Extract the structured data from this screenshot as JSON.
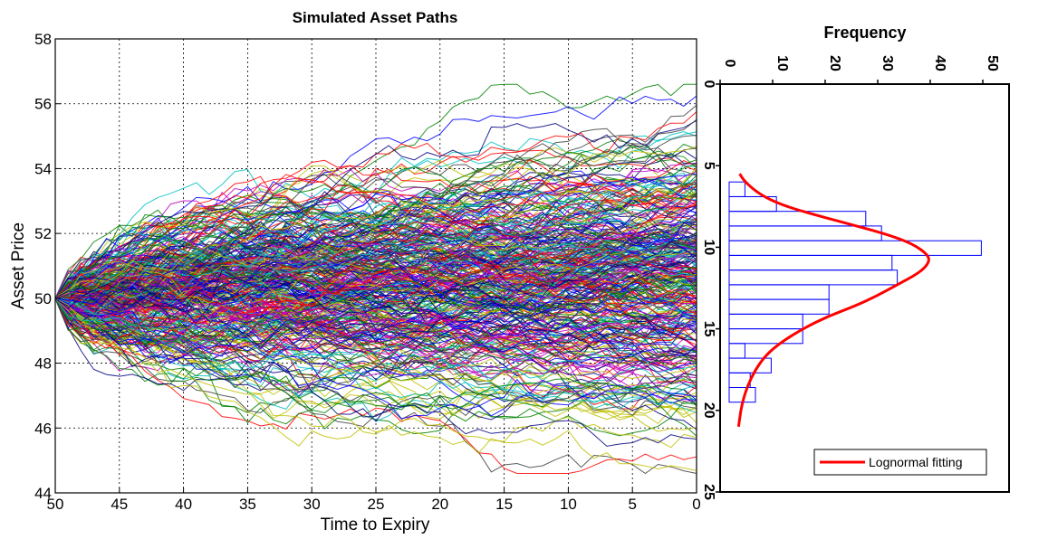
{
  "chart_data": [
    {
      "type": "line",
      "title": "Simulated Asset Paths",
      "xlabel": "Time to Expiry",
      "ylabel": "Asset Price",
      "xlim": [
        50,
        0
      ],
      "ylim": [
        44,
        58
      ],
      "x_reversed": true,
      "grid": true,
      "x_ticks": [
        "50",
        "45",
        "40",
        "35",
        "30",
        "25",
        "20",
        "15",
        "10",
        "5",
        "0"
      ],
      "y_ticks": [
        "44",
        "46",
        "48",
        "50",
        "52",
        "54",
        "56",
        "58"
      ],
      "start_price": 50,
      "steps": 50,
      "path_count": 1000,
      "band_hi": [
        50.0,
        50.9,
        51.3,
        51.6,
        51.9,
        52.2,
        52.5,
        52.7,
        52.9,
        53.0,
        53.1,
        53.3,
        53.4,
        53.6,
        53.7,
        53.8,
        53.9,
        54.0,
        54.1,
        54.1,
        54.2,
        54.3,
        54.3,
        54.4,
        54.4,
        54.5,
        54.6,
        54.7,
        54.7,
        54.8,
        54.8,
        54.9,
        55.0,
        55.0,
        55.1,
        55.1,
        55.2,
        55.2,
        55.3,
        55.3,
        55.4,
        55.5,
        55.5,
        55.6,
        55.6,
        55.7,
        55.7,
        55.8,
        55.8,
        55.9,
        56.0
      ],
      "band_lo": [
        50.0,
        49.1,
        48.7,
        48.4,
        48.2,
        48.0,
        47.8,
        47.6,
        47.5,
        47.4,
        47.3,
        47.2,
        47.1,
        47.0,
        46.9,
        46.8,
        46.7,
        46.7,
        46.6,
        46.5,
        46.5,
        46.4,
        46.4,
        46.3,
        46.3,
        46.2,
        46.2,
        46.1,
        46.1,
        46.0,
        46.0,
        45.9,
        45.9,
        45.8,
        45.8,
        45.7,
        45.7,
        45.7,
        45.6,
        45.6,
        45.6,
        45.5,
        45.5,
        45.5,
        45.4,
        45.4,
        45.4,
        45.3,
        45.3,
        45.3,
        45.2
      ],
      "extreme_max": 56.6,
      "extreme_min": 44.6,
      "colors": [
        "#0000ff",
        "#ff0000",
        "#008000",
        "#00bfbf",
        "#bf00bf",
        "#bfbf00",
        "#000080",
        "#404040"
      ]
    },
    {
      "type": "bar",
      "orientation": "horizontal",
      "title": "Frequency",
      "xlabel": "Frequency",
      "xlim": [
        0,
        55
      ],
      "ylim": [
        0,
        25
      ],
      "x_ticks": [
        "0",
        "10",
        "20",
        "30",
        "40",
        "50"
      ],
      "y_ticks": [
        "0",
        "5",
        "10",
        "15",
        "20",
        "25"
      ],
      "bins": [
        {
          "y0": 6.0,
          "y1": 6.9,
          "value": 3
        },
        {
          "y0": 6.9,
          "y1": 7.8,
          "value": 9
        },
        {
          "y0": 7.8,
          "y1": 8.7,
          "value": 26
        },
        {
          "y0": 8.7,
          "y1": 9.6,
          "value": 29
        },
        {
          "y0": 9.6,
          "y1": 10.5,
          "value": 48
        },
        {
          "y0": 10.5,
          "y1": 11.4,
          "value": 31
        },
        {
          "y0": 11.4,
          "y1": 12.3,
          "value": 32
        },
        {
          "y0": 12.3,
          "y1": 13.2,
          "value": 19
        },
        {
          "y0": 13.2,
          "y1": 14.1,
          "value": 19
        },
        {
          "y0": 14.1,
          "y1": 15.0,
          "value": 14
        },
        {
          "y0": 15.0,
          "y1": 15.9,
          "value": 14
        },
        {
          "y0": 15.9,
          "y1": 16.8,
          "value": 3
        },
        {
          "y0": 16.8,
          "y1": 17.7,
          "value": 8
        },
        {
          "y0": 17.7,
          "y1": 18.6,
          "value": 4
        },
        {
          "y0": 18.6,
          "y1": 19.5,
          "value": 5
        }
      ],
      "fit_curve": [
        [
          2,
          5.5
        ],
        [
          3,
          6.0
        ],
        [
          6,
          6.8
        ],
        [
          10,
          7.4
        ],
        [
          15,
          7.9
        ],
        [
          22,
          8.5
        ],
        [
          30,
          9.2
        ],
        [
          35,
          9.8
        ],
        [
          38,
          10.5
        ],
        [
          38,
          11.0
        ],
        [
          36,
          11.6
        ],
        [
          32,
          12.3
        ],
        [
          28,
          13.0
        ],
        [
          24,
          13.6
        ],
        [
          19,
          14.2
        ],
        [
          14,
          15.0
        ],
        [
          10,
          15.8
        ],
        [
          7,
          16.6
        ],
        [
          5,
          17.5
        ],
        [
          3.5,
          18.5
        ],
        [
          2.5,
          19.5
        ],
        [
          2,
          20.5
        ],
        [
          1.8,
          21.0
        ]
      ],
      "legend": {
        "label": "Lognormal fitting",
        "position": "bottom-right"
      },
      "bar_color": "#0000ff",
      "fit_color": "#ff0000"
    }
  ]
}
